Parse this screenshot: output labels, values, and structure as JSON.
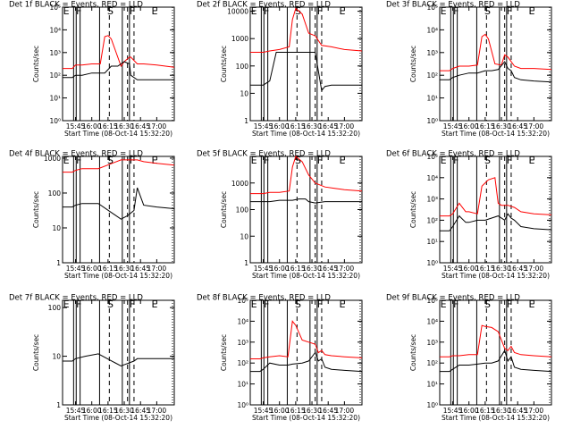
{
  "chart_data": {
    "type": "line",
    "x_ticks": [
      "15:45",
      "16:00",
      "16:15",
      "16:30",
      "16:45",
      "17:00"
    ],
    "xlabel": "Start Time (08-Oct-14 15:32:20)",
    "ylabel": "Counts/sec",
    "series_names": [
      "Events",
      "LLD"
    ],
    "colors": {
      "events": "#000000",
      "lld": "#ff0000"
    },
    "x_range_minutes": [
      15.55,
      17.27
    ],
    "panels": [
      {
        "title": "Det 1f BLACK = Events, RED = LLD",
        "yticks": [
          "10⁰",
          "10¹",
          "10²",
          "10³",
          "10⁴",
          "10⁵"
        ],
        "ylog": [
          0,
          5
        ],
        "markers": [
          "E",
          "F",
          "S",
          "F",
          "E"
        ],
        "events": {
          "x": [
            15.55,
            15.7,
            15.75,
            15.85,
            16.0,
            16.13,
            16.2,
            16.3,
            16.4,
            16.5,
            16.58,
            16.6,
            16.7,
            16.8,
            17.0,
            17.27
          ],
          "y": [
            1.9,
            1.9,
            2.0,
            2.0,
            2.1,
            2.1,
            2.1,
            2.4,
            2.4,
            2.6,
            2.5,
            2.0,
            1.8,
            1.8,
            1.8,
            1.8
          ]
        },
        "lld": {
          "x": [
            15.55,
            15.7,
            15.75,
            15.85,
            16.0,
            16.13,
            16.2,
            16.25,
            16.3,
            16.45,
            16.5,
            16.58,
            16.6,
            16.7,
            16.8,
            17.0,
            17.27
          ],
          "y": [
            2.3,
            2.3,
            2.45,
            2.45,
            2.5,
            2.5,
            3.7,
            3.75,
            3.6,
            2.4,
            2.6,
            2.8,
            2.8,
            2.5,
            2.5,
            2.45,
            2.35
          ]
        }
      },
      {
        "title": "Det 2f BLACK = Events, RED = LLD",
        "yticks": [
          "1",
          "10",
          "100",
          "1000",
          "10000"
        ],
        "ylog": [
          0,
          4.15
        ],
        "markers": [
          "E",
          "F",
          "S",
          "F",
          "E"
        ],
        "events": {
          "x": [
            15.55,
            15.75,
            15.85,
            15.95,
            16.1,
            16.25,
            16.35,
            16.45,
            16.55,
            16.6,
            16.65,
            16.7,
            16.8,
            17.0,
            17.27
          ],
          "y": [
            1.3,
            1.3,
            1.45,
            2.5,
            2.5,
            2.5,
            2.5,
            2.5,
            2.5,
            1.8,
            1.1,
            1.25,
            1.3,
            1.3,
            1.3
          ]
        },
        "lld": {
          "x": [
            15.55,
            15.75,
            15.85,
            16.0,
            16.15,
            16.2,
            16.25,
            16.35,
            16.45,
            16.55,
            16.65,
            16.8,
            17.0,
            17.27
          ],
          "y": [
            2.5,
            2.5,
            2.55,
            2.6,
            2.7,
            3.7,
            4.1,
            3.9,
            3.2,
            3.1,
            2.75,
            2.7,
            2.6,
            2.55
          ]
        }
      },
      {
        "title": "Det 3f BLACK = Events, RED = LLD",
        "yticks": [
          "10⁰",
          "10¹",
          "10²",
          "10³",
          "10⁴",
          "10⁵"
        ],
        "ylog": [
          0,
          5
        ],
        "markers": [
          "E",
          "F",
          "S",
          "F",
          "E"
        ],
        "events": {
          "x": [
            15.55,
            15.7,
            15.75,
            15.85,
            16.0,
            16.13,
            16.25,
            16.35,
            16.45,
            16.55,
            16.6,
            16.65,
            16.7,
            16.8,
            17.0,
            17.27
          ],
          "y": [
            1.8,
            1.8,
            1.9,
            2.0,
            2.1,
            2.1,
            2.2,
            2.2,
            2.25,
            2.6,
            2.3,
            2.2,
            1.9,
            1.8,
            1.75,
            1.7
          ]
        },
        "lld": {
          "x": [
            15.55,
            15.7,
            15.75,
            15.85,
            16.0,
            16.13,
            16.2,
            16.25,
            16.3,
            16.4,
            16.5,
            16.55,
            16.6,
            16.7,
            16.8,
            17.0,
            17.27
          ],
          "y": [
            2.2,
            2.2,
            2.3,
            2.4,
            2.4,
            2.45,
            3.7,
            3.8,
            3.6,
            2.5,
            2.45,
            2.9,
            2.8,
            2.4,
            2.3,
            2.3,
            2.25
          ]
        }
      },
      {
        "title": "Det 4f BLACK = Events, RED = LLD",
        "yticks": [
          "1",
          "10",
          "100",
          "1000"
        ],
        "ylog": [
          0,
          3.05
        ],
        "markers": [
          "E",
          "F",
          "S",
          "F",
          "E"
        ],
        "events": {
          "x": [
            15.55,
            15.7,
            15.75,
            15.85,
            16.0,
            16.1,
            16.45,
            16.55,
            16.65,
            16.7,
            16.8,
            17.0,
            17.27
          ],
          "y": [
            1.6,
            1.6,
            1.65,
            1.7,
            1.7,
            1.7,
            1.25,
            1.35,
            1.5,
            2.15,
            1.65,
            1.6,
            1.55
          ]
        },
        "lld": {
          "x": [
            15.55,
            15.7,
            15.75,
            15.85,
            16.0,
            16.1,
            16.45,
            16.55,
            16.65,
            16.7,
            16.8,
            17.0,
            17.27
          ],
          "y": [
            2.6,
            2.6,
            2.65,
            2.7,
            2.7,
            2.7,
            2.95,
            2.95,
            2.95,
            2.95,
            2.9,
            2.85,
            2.8
          ]
        }
      },
      {
        "title": "Det 5f BLACK = Events, RED = LLD",
        "yticks": [
          "1",
          "10",
          "100",
          "1000"
        ],
        "ylog": [
          0,
          4
        ],
        "markers": [
          "E",
          "F",
          "S",
          "F",
          "E"
        ],
        "events": {
          "x": [
            15.55,
            15.75,
            15.85,
            16.0,
            16.2,
            16.3,
            16.4,
            16.45,
            16.55,
            16.7,
            16.85,
            17.0,
            17.27
          ],
          "y": [
            2.3,
            2.3,
            2.3,
            2.35,
            2.35,
            2.4,
            2.4,
            2.3,
            2.25,
            2.3,
            2.3,
            2.3,
            2.3
          ]
        },
        "lld": {
          "x": [
            15.55,
            15.75,
            15.85,
            16.0,
            16.15,
            16.2,
            16.25,
            16.35,
            16.45,
            16.55,
            16.7,
            16.85,
            17.0,
            17.27
          ],
          "y": [
            2.6,
            2.6,
            2.65,
            2.65,
            2.7,
            3.6,
            4.0,
            3.8,
            3.3,
            3.0,
            2.85,
            2.8,
            2.75,
            2.7
          ]
        }
      },
      {
        "title": "Det 6f BLACK = Events, RED = LLD",
        "yticks": [
          "10⁰",
          "10¹",
          "10²",
          "10³",
          "10⁴",
          "10⁵"
        ],
        "ylog": [
          0,
          5
        ],
        "markers": [
          "E",
          "F",
          "S",
          "F",
          "E"
        ],
        "events": {
          "x": [
            15.55,
            15.7,
            15.75,
            15.85,
            15.95,
            16.0,
            16.13,
            16.25,
            16.35,
            16.45,
            16.55,
            16.6,
            16.65,
            16.7,
            16.8,
            17.0,
            17.27
          ],
          "y": [
            1.5,
            1.5,
            1.7,
            2.2,
            1.9,
            1.9,
            2.0,
            2.0,
            2.1,
            2.2,
            2.0,
            2.3,
            2.1,
            2.0,
            1.7,
            1.6,
            1.55
          ]
        },
        "lld": {
          "x": [
            15.55,
            15.7,
            15.75,
            15.85,
            15.95,
            16.0,
            16.13,
            16.2,
            16.3,
            16.4,
            16.45,
            16.5,
            16.6,
            16.7,
            16.8,
            17.0,
            17.27
          ],
          "y": [
            2.2,
            2.2,
            2.3,
            2.8,
            2.4,
            2.4,
            2.3,
            3.6,
            3.9,
            4.0,
            2.8,
            2.7,
            2.7,
            2.6,
            2.4,
            2.3,
            2.25
          ]
        }
      },
      {
        "title": "Det 7f BLACK = Events, RED = LLD",
        "yticks": [
          "1",
          "10",
          "100"
        ],
        "ylog": [
          0,
          2.15
        ],
        "markers": [
          "E",
          "F",
          "S",
          "F",
          "E"
        ],
        "events": {
          "x": [
            15.55,
            15.7,
            15.75,
            15.9,
            16.1,
            16.45,
            16.55,
            16.65,
            16.7,
            16.85,
            17.0,
            17.27
          ],
          "y": [
            0.9,
            0.9,
            0.95,
            1.0,
            1.05,
            0.8,
            0.85,
            0.9,
            0.95,
            0.95,
            0.95,
            0.95
          ]
        },
        "lld": null
      },
      {
        "title": "Det 8f BLACK = Events, RED = LLD",
        "yticks": [
          "10⁰",
          "10¹",
          "10²",
          "10³",
          "10⁴",
          "10⁵"
        ],
        "ylog": [
          0,
          5
        ],
        "markers": [
          "E",
          "F",
          "S",
          "F",
          "E"
        ],
        "events": {
          "x": [
            15.55,
            15.7,
            15.75,
            15.85,
            16.0,
            16.13,
            16.2,
            16.35,
            16.45,
            16.55,
            16.6,
            16.65,
            16.7,
            16.8,
            17.0,
            17.27
          ],
          "y": [
            1.6,
            1.6,
            1.7,
            2.0,
            1.9,
            1.9,
            1.95,
            2.0,
            2.1,
            2.5,
            2.1,
            2.2,
            1.8,
            1.7,
            1.65,
            1.6
          ]
        },
        "lld": {
          "x": [
            15.55,
            15.7,
            15.75,
            15.85,
            16.0,
            16.13,
            16.2,
            16.25,
            16.35,
            16.45,
            16.55,
            16.6,
            16.65,
            16.7,
            16.8,
            17.0,
            17.27
          ],
          "y": [
            2.2,
            2.2,
            2.25,
            2.3,
            2.35,
            2.3,
            4.0,
            3.8,
            3.1,
            3.0,
            2.9,
            2.5,
            2.6,
            2.4,
            2.35,
            2.3,
            2.25
          ]
        }
      },
      {
        "title": "Det 9f BLACK = Events, RED = LLD",
        "yticks": [
          "10⁰",
          "10¹",
          "10²",
          "10³",
          "10⁴",
          "10⁵"
        ],
        "ylog": [
          0,
          5
        ],
        "markers": [
          "E",
          "F",
          "S",
          "F",
          "E"
        ],
        "events": {
          "x": [
            15.55,
            15.7,
            15.75,
            15.85,
            16.0,
            16.13,
            16.25,
            16.35,
            16.45,
            16.55,
            16.6,
            16.65,
            16.7,
            16.8,
            17.0,
            17.27
          ],
          "y": [
            1.6,
            1.6,
            1.7,
            1.9,
            1.9,
            1.95,
            2.0,
            2.0,
            2.1,
            2.6,
            2.1,
            2.3,
            1.8,
            1.7,
            1.65,
            1.6
          ]
        },
        "lld": {
          "x": [
            15.55,
            15.7,
            15.75,
            15.85,
            16.0,
            16.13,
            16.2,
            16.25,
            16.35,
            16.45,
            16.55,
            16.6,
            16.65,
            16.7,
            16.8,
            17.0,
            17.27
          ],
          "y": [
            2.3,
            2.3,
            2.35,
            2.35,
            2.4,
            2.4,
            3.8,
            3.75,
            3.7,
            3.5,
            2.7,
            2.6,
            2.8,
            2.5,
            2.4,
            2.35,
            2.3
          ]
        }
      }
    ]
  }
}
